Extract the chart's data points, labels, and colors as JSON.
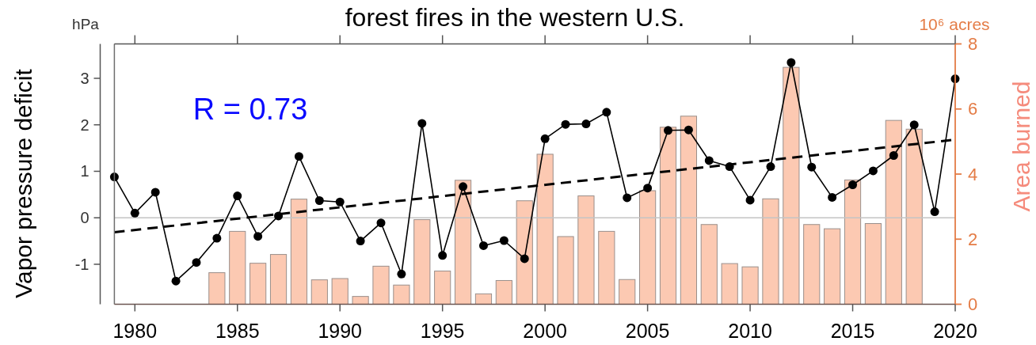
{
  "chart_data": {
    "type": "line",
    "title": "forest fires in the western U.S.",
    "ylabel": "Vapor pressure deficit",
    "y2label": "Area burned",
    "annotations": [
      "R = 0.73",
      "hPa",
      "10⁶ acres"
    ],
    "x": [
      1979,
      1980,
      1981,
      1982,
      1983,
      1984,
      1985,
      1986,
      1987,
      1988,
      1989,
      1990,
      1991,
      1992,
      1993,
      1994,
      1995,
      1996,
      1997,
      1998,
      1999,
      2000,
      2001,
      2002,
      2003,
      2004,
      2005,
      2006,
      2007,
      2008,
      2009,
      2010,
      2011,
      2012,
      2013,
      2014,
      2015,
      2016,
      2017,
      2018,
      2019,
      2020
    ],
    "xlim": [
      1979,
      2020
    ],
    "xticks": [
      1980,
      1985,
      1990,
      1995,
      2000,
      2005,
      2010,
      2015,
      2020
    ],
    "ylim": [
      -1.86,
      3.74
    ],
    "yticks": [
      -1,
      0,
      1,
      2,
      3
    ],
    "y2lim": [
      0,
      8
    ],
    "y2ticks": [
      0,
      2,
      4,
      6,
      8
    ],
    "ref_lines": [
      {
        "axis": "y",
        "value": 0,
        "color": "#c4c4c4"
      }
    ],
    "series": [
      {
        "type": "bar",
        "axis": "y2",
        "color": "#fcc9b2",
        "values": [
          null,
          null,
          null,
          null,
          null,
          0.97,
          2.24,
          1.26,
          1.53,
          3.23,
          0.75,
          0.79,
          0.24,
          1.17,
          0.59,
          2.6,
          1.02,
          3.81,
          0.32,
          0.73,
          3.18,
          4.61,
          2.08,
          3.33,
          2.24,
          0.76,
          3.49,
          5.44,
          5.78,
          2.45,
          1.25,
          1.15,
          3.24,
          7.28,
          2.45,
          2.32,
          3.82,
          2.48,
          5.65,
          5.38,
          null,
          null
        ]
      },
      {
        "color": "#000000",
        "marker": "circle",
        "values": [
          0.88,
          0.1,
          0.55,
          -1.36,
          -0.96,
          -0.44,
          0.47,
          -0.4,
          0.04,
          1.32,
          0.37,
          0.34,
          -0.5,
          -0.11,
          -1.21,
          2.03,
          -0.81,
          0.67,
          -0.6,
          -0.49,
          -0.88,
          1.7,
          2.01,
          2.02,
          2.27,
          0.43,
          0.64,
          1.88,
          1.89,
          1.23,
          1.1,
          0.38,
          1.1,
          3.34,
          1.09,
          0.44,
          0.71,
          1.01,
          1.34,
          2.0,
          0.13,
          2.99
        ]
      },
      {
        "color": "#000000",
        "line_style": "dashed",
        "x": [
          1979,
          2020
        ],
        "values": [
          -0.31,
          1.68
        ]
      }
    ]
  }
}
